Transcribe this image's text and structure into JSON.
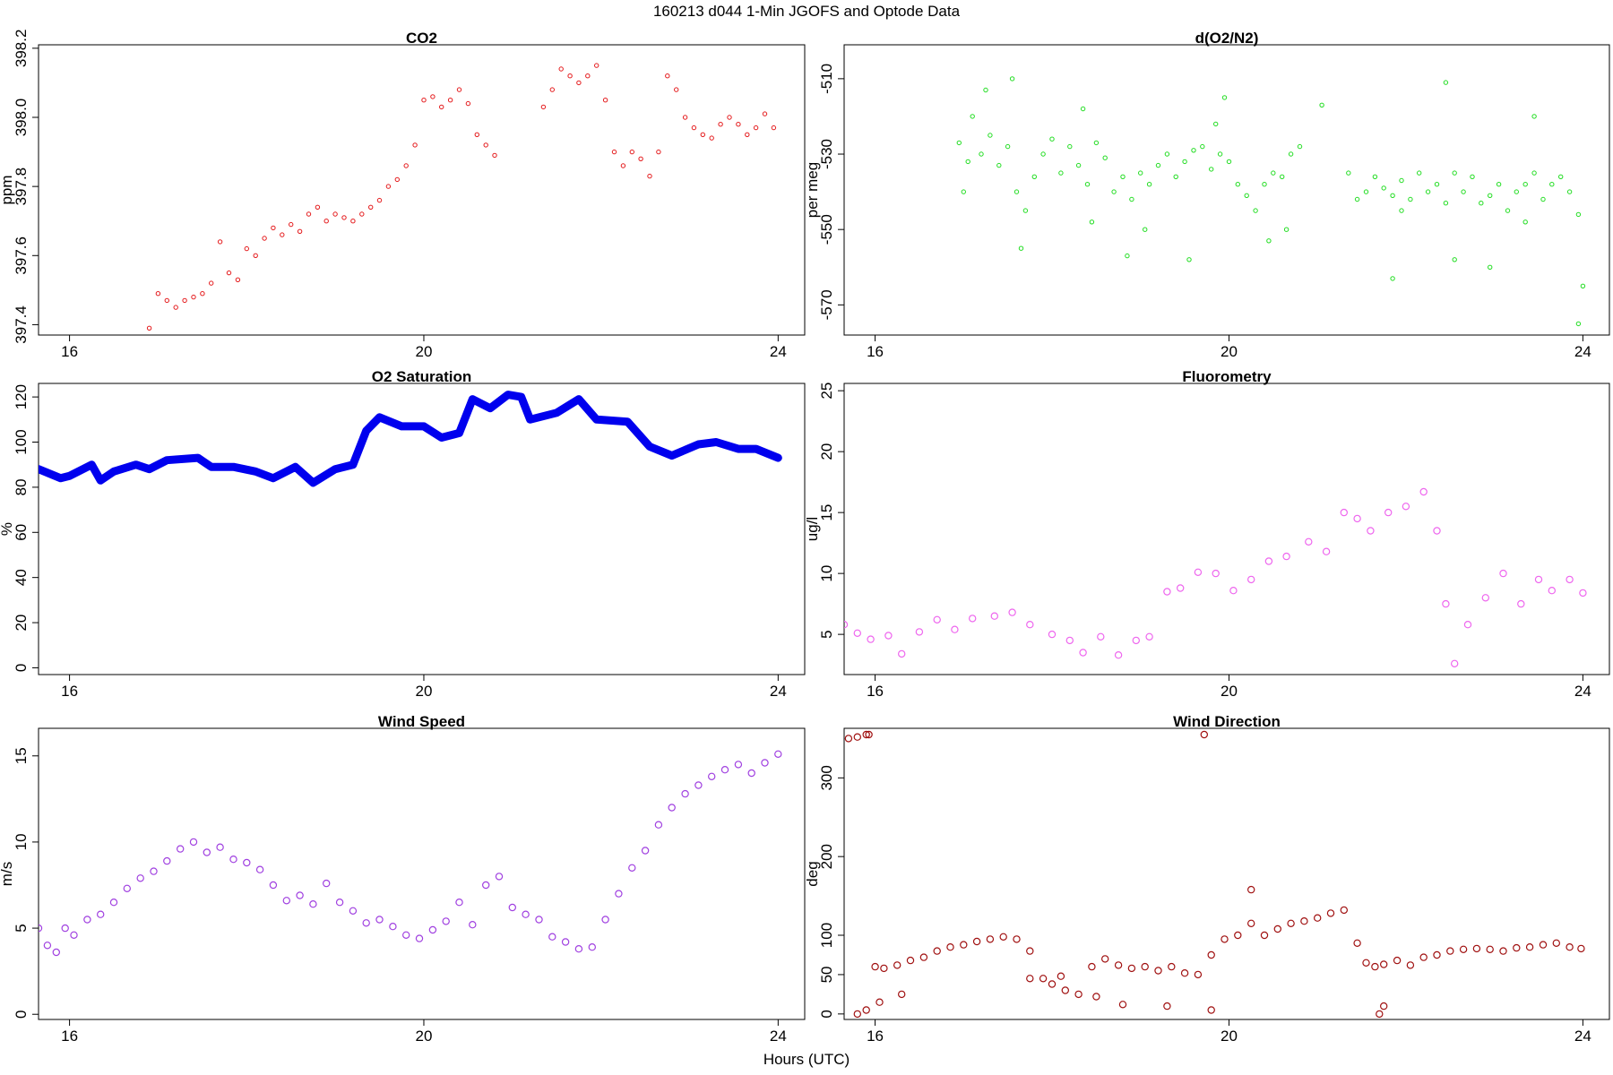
{
  "figure": {
    "title": "160213   d044   1-Min  JGOFS and Optode Data",
    "xlabel": "Hours (UTC)"
  },
  "chart_data": [
    {
      "id": "co2",
      "type": "scatter",
      "title": "CO2",
      "ylabel": "ppm",
      "xlim": [
        15.65,
        24.3
      ],
      "ylim": [
        397.37,
        398.21
      ],
      "xticks": [
        16,
        20,
        24
      ],
      "yticks": [
        397.4,
        397.6,
        397.8,
        398.0,
        398.2
      ],
      "ytick_labels": [
        "397.4",
        "397.6",
        "397.8",
        "398.0",
        "398.2"
      ],
      "color": "#e41a1c",
      "marker": "small-circle",
      "series": [
        {
          "x": [
            16.9,
            17.0,
            17.1,
            17.2,
            17.3,
            17.4,
            17.5,
            17.6,
            17.7,
            17.8,
            17.9,
            18.0,
            18.1,
            18.2,
            18.3,
            18.4,
            18.5,
            18.6,
            18.7,
            18.8,
            18.9,
            19.0,
            19.1,
            19.2,
            19.3,
            19.4,
            19.5,
            19.6,
            19.7,
            19.8,
            19.9,
            20.0,
            20.1,
            20.2,
            20.3,
            20.4,
            20.5,
            20.6,
            20.7,
            20.8,
            21.35,
            21.45,
            21.55,
            21.65,
            21.75,
            21.85,
            21.95,
            22.05,
            22.15,
            22.25,
            22.35,
            22.45,
            22.55,
            22.65,
            22.75,
            22.85,
            22.95,
            23.05,
            23.15,
            23.25,
            23.35,
            23.45,
            23.55,
            23.65,
            23.75,
            23.85,
            23.95
          ],
          "y": [
            397.39,
            397.49,
            397.47,
            397.45,
            397.47,
            397.48,
            397.49,
            397.52,
            397.64,
            397.55,
            397.53,
            397.62,
            397.6,
            397.65,
            397.68,
            397.66,
            397.69,
            397.67,
            397.72,
            397.74,
            397.7,
            397.72,
            397.71,
            397.7,
            397.72,
            397.74,
            397.76,
            397.8,
            397.82,
            397.86,
            397.92,
            398.05,
            398.06,
            398.03,
            398.05,
            398.08,
            398.04,
            397.95,
            397.92,
            397.89,
            398.03,
            398.08,
            398.14,
            398.12,
            398.1,
            398.12,
            398.15,
            398.05,
            397.9,
            397.86,
            397.9,
            397.88,
            397.83,
            397.9,
            398.12,
            398.08,
            398.0,
            397.97,
            397.95,
            397.94,
            397.98,
            398.0,
            397.98,
            397.95,
            397.97,
            398.01,
            397.97
          ]
        }
      ]
    },
    {
      "id": "do2n2",
      "type": "scatter",
      "title": "d(O2/N2)",
      "ylabel": "per meg",
      "xlim": [
        15.65,
        24.3
      ],
      "ylim": [
        -578,
        -501
      ],
      "xticks": [
        16,
        20,
        24
      ],
      "yticks": [
        -570,
        -550,
        -530,
        -510
      ],
      "ytick_labels": [
        "-570",
        "-550",
        "-530",
        "-510"
      ],
      "color": "#22dd22",
      "marker": "small-circle",
      "series": [
        {
          "x": [
            16.95,
            17.05,
            17.1,
            17.2,
            17.3,
            17.4,
            17.5,
            17.6,
            17.7,
            17.8,
            17.9,
            18.0,
            18.1,
            18.2,
            18.3,
            18.4,
            18.5,
            18.6,
            18.7,
            18.8,
            18.9,
            19.0,
            19.1,
            19.2,
            19.3,
            19.4,
            19.5,
            19.6,
            19.7,
            19.8,
            19.9,
            20.0,
            20.1,
            20.2,
            20.3,
            20.4,
            20.5,
            20.6,
            20.7,
            20.8,
            21.35,
            21.45,
            21.55,
            21.65,
            21.75,
            21.85,
            21.95,
            22.05,
            22.15,
            22.25,
            22.35,
            22.45,
            22.55,
            22.65,
            22.75,
            22.85,
            22.95,
            23.05,
            23.15,
            23.25,
            23.35,
            23.45,
            23.55,
            23.65,
            23.75,
            23.85,
            23.95,
            17.25,
            17.55,
            18.35,
            18.85,
            19.55,
            19.95,
            20.45,
            21.05,
            21.85,
            22.45,
            22.95,
            23.45,
            23.95,
            17.0,
            17.65,
            18.45,
            19.05,
            19.85,
            20.65,
            21.95,
            22.55,
            23.35,
            24.0
          ],
          "y": [
            -527,
            -532,
            -520,
            -530,
            -525,
            -533,
            -528,
            -540,
            -545,
            -536,
            -530,
            -526,
            -535,
            -528,
            -533,
            -538,
            -527,
            -531,
            -540,
            -536,
            -542,
            -535,
            -538,
            -533,
            -530,
            -536,
            -532,
            -529,
            -528,
            -534,
            -530,
            -532,
            -538,
            -541,
            -545,
            -538,
            -535,
            -536,
            -530,
            -528,
            -535,
            -542,
            -540,
            -536,
            -539,
            -541,
            -537,
            -542,
            -535,
            -540,
            -538,
            -543,
            -535,
            -540,
            -536,
            -543,
            -541,
            -538,
            -545,
            -540,
            -538,
            -535,
            -542,
            -538,
            -536,
            -540,
            -546,
            -513,
            -510,
            -518,
            -557,
            -558,
            -515,
            -553,
            -517,
            -563,
            -511,
            -560,
            -520,
            -575,
            -540,
            -555,
            -548,
            -550,
            -522,
            -550,
            -545,
            -558,
            -548,
            -565
          ]
        }
      ]
    },
    {
      "id": "o2sat",
      "type": "line",
      "title": "O2 Saturation",
      "ylabel": "%",
      "xlim": [
        15.65,
        24.3
      ],
      "ylim": [
        -3,
        126
      ],
      "xticks": [
        16,
        20,
        24
      ],
      "yticks": [
        0,
        20,
        40,
        60,
        80,
        100,
        120
      ],
      "ytick_labels": [
        "0",
        "20",
        "40",
        "60",
        "80",
        "100",
        "120"
      ],
      "color": "#0000ee",
      "marker": "thick-line",
      "series": [
        {
          "x": [
            15.65,
            15.9,
            16.0,
            16.25,
            16.35,
            16.5,
            16.75,
            16.9,
            17.1,
            17.45,
            17.6,
            17.85,
            18.1,
            18.3,
            18.55,
            18.75,
            19.0,
            19.2,
            19.35,
            19.5,
            19.75,
            20.0,
            20.2,
            20.4,
            20.55,
            20.75,
            20.95,
            21.1,
            21.2,
            21.5,
            21.75,
            21.95,
            22.3,
            22.55,
            22.8,
            23.1,
            23.3,
            23.55,
            23.75,
            24.0
          ],
          "y": [
            88,
            84,
            85,
            90,
            83,
            87,
            90,
            88,
            92,
            93,
            89,
            89,
            87,
            84,
            89,
            82,
            88,
            90,
            105,
            111,
            107,
            107,
            102,
            104,
            119,
            115,
            121,
            120,
            110,
            113,
            119,
            110,
            109,
            98,
            94,
            99,
            100,
            97,
            97,
            93
          ]
        }
      ]
    },
    {
      "id": "fluor",
      "type": "scatter",
      "title": "Fluorometry",
      "ylabel": "ug/l",
      "xlim": [
        15.65,
        24.3
      ],
      "ylim": [
        1.7,
        25.6
      ],
      "xticks": [
        16,
        20,
        24
      ],
      "yticks": [
        5,
        10,
        15,
        20,
        25
      ],
      "ytick_labels": [
        "5",
        "10",
        "15",
        "20",
        "25"
      ],
      "color": "#ee66ee",
      "marker": "circle",
      "series": [
        {
          "x": [
            15.65,
            15.8,
            15.95,
            16.15,
            16.3,
            16.5,
            16.7,
            16.9,
            17.1,
            17.35,
            17.55,
            17.75,
            18.0,
            18.2,
            18.35,
            18.55,
            18.75,
            18.95,
            19.1,
            19.3,
            19.45,
            19.65,
            19.85,
            20.05,
            20.25,
            20.45,
            20.65,
            20.9,
            21.1,
            21.3,
            21.45,
            21.6,
            21.8,
            22.0,
            22.2,
            22.35,
            22.45,
            22.55,
            22.7,
            22.9,
            23.1,
            23.3,
            23.5,
            23.65,
            23.85,
            24.0
          ],
          "y": [
            5.8,
            5.1,
            4.6,
            4.9,
            3.4,
            5.2,
            6.2,
            5.4,
            6.3,
            6.5,
            6.8,
            5.8,
            5.0,
            4.5,
            3.5,
            4.8,
            3.3,
            4.5,
            4.8,
            8.5,
            8.8,
            10.1,
            10.0,
            8.6,
            9.5,
            11.0,
            11.4,
            12.6,
            11.8,
            15.0,
            14.5,
            13.5,
            15.0,
            15.5,
            16.7,
            13.5,
            7.5,
            2.6,
            5.8,
            8.0,
            10.0,
            7.5,
            9.5,
            8.6,
            9.5,
            8.4
          ]
        }
      ]
    },
    {
      "id": "wspd",
      "type": "scatter",
      "title": "Wind Speed",
      "ylabel": "m/s",
      "xlim": [
        15.65,
        24.3
      ],
      "ylim": [
        -0.3,
        16.6
      ],
      "xticks": [
        16,
        20,
        24
      ],
      "yticks": [
        0,
        5,
        10,
        15
      ],
      "ytick_labels": [
        "0",
        "5",
        "10",
        "15"
      ],
      "color": "#a040e0",
      "marker": "circle",
      "series": [
        {
          "x": [
            15.65,
            15.75,
            15.85,
            15.95,
            16.05,
            16.2,
            16.35,
            16.5,
            16.65,
            16.8,
            16.95,
            17.1,
            17.25,
            17.4,
            17.55,
            17.7,
            17.85,
            18.0,
            18.15,
            18.3,
            18.45,
            18.6,
            18.75,
            18.9,
            19.05,
            19.2,
            19.35,
            19.5,
            19.65,
            19.8,
            19.95,
            20.1,
            20.25,
            20.4,
            20.55,
            20.7,
            20.85,
            21.0,
            21.15,
            21.3,
            21.45,
            21.6,
            21.75,
            21.9,
            22.05,
            22.2,
            22.35,
            22.5,
            22.65,
            22.8,
            22.95,
            23.1,
            23.25,
            23.4,
            23.55,
            23.7,
            23.85,
            24.0
          ],
          "y": [
            5.0,
            4.0,
            3.6,
            5.0,
            4.6,
            5.5,
            5.8,
            6.5,
            7.3,
            7.9,
            8.3,
            8.9,
            9.6,
            10.0,
            9.4,
            9.7,
            9.0,
            8.8,
            8.4,
            7.5,
            6.6,
            6.9,
            6.4,
            7.6,
            6.5,
            6.0,
            5.3,
            5.5,
            5.1,
            4.6,
            4.4,
            4.9,
            5.4,
            6.5,
            5.2,
            7.5,
            8.0,
            6.2,
            5.8,
            5.5,
            4.5,
            4.2,
            3.8,
            3.9,
            5.5,
            7.0,
            8.5,
            9.5,
            11.0,
            12.0,
            12.8,
            13.3,
            13.8,
            14.2,
            14.5,
            14.0,
            14.6,
            15.1
          ]
        }
      ]
    },
    {
      "id": "wdir",
      "type": "scatter",
      "title": "Wind Direction",
      "ylabel": "deg",
      "xlim": [
        15.65,
        24.3
      ],
      "ylim": [
        -7,
        363
      ],
      "xticks": [
        16,
        20,
        24
      ],
      "yticks": [
        0,
        50,
        100,
        200,
        300
      ],
      "ytick_labels": [
        "0",
        "50",
        "100",
        "200",
        "300"
      ],
      "color": "#a01010",
      "marker": "circle",
      "series": [
        {
          "x": [
            15.7,
            15.8,
            15.9,
            15.93,
            16.0,
            16.1,
            16.25,
            16.4,
            16.55,
            16.7,
            16.85,
            17.0,
            17.15,
            17.3,
            17.45,
            17.6,
            17.75,
            17.9,
            18.0,
            18.15,
            18.3,
            18.45,
            18.6,
            18.75,
            18.9,
            19.05,
            19.2,
            19.35,
            19.5,
            19.65,
            19.72,
            19.8,
            19.95,
            20.1,
            20.25,
            20.4,
            20.55,
            20.7,
            20.85,
            21.0,
            21.15,
            21.3,
            21.45,
            21.55,
            21.65,
            21.75,
            21.9,
            22.05,
            22.2,
            22.35,
            22.5,
            22.65,
            22.8,
            22.95,
            23.1,
            23.25,
            23.4,
            23.55,
            23.7,
            23.85,
            23.98,
            15.8,
            15.9,
            16.05,
            16.3,
            17.75,
            18.1,
            18.5,
            18.8,
            19.3,
            19.8,
            20.25,
            21.7,
            21.75
          ],
          "y": [
            350,
            352,
            355,
            355,
            60,
            58,
            62,
            68,
            72,
            80,
            85,
            88,
            92,
            95,
            98,
            95,
            80,
            45,
            38,
            30,
            25,
            60,
            70,
            62,
            58,
            60,
            55,
            60,
            52,
            50,
            355,
            75,
            95,
            100,
            115,
            100,
            108,
            115,
            118,
            122,
            128,
            132,
            90,
            65,
            60,
            63,
            68,
            62,
            72,
            75,
            80,
            82,
            83,
            82,
            80,
            84,
            85,
            88,
            90,
            85,
            83,
            0,
            5,
            15,
            25,
            45,
            48,
            22,
            12,
            10,
            5,
            158,
            0,
            10
          ]
        }
      ]
    }
  ]
}
